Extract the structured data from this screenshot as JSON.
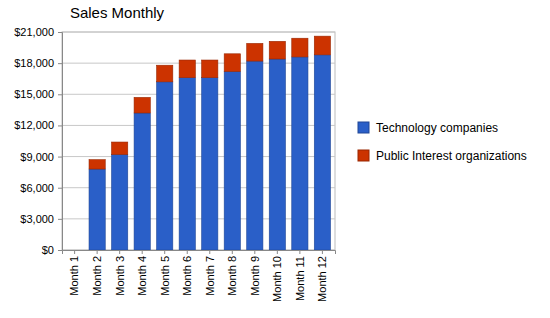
{
  "chart_data": {
    "type": "bar",
    "title": "Sales Monthly",
    "stacked": true,
    "grid": true,
    "legend": "right",
    "categories": [
      "Month 1",
      "Month 2",
      "Month 3",
      "Month 4",
      "Month 5",
      "Month 6",
      "Month 7",
      "Month 8",
      "Month 9",
      "Month 10",
      "Month 11",
      "Month 12"
    ],
    "series": [
      {
        "name": "Technology companies",
        "color": "#2a5fc8",
        "values": [
          0,
          7800,
          9200,
          13200,
          16200,
          16600,
          16600,
          17200,
          18200,
          18400,
          18600,
          18800
        ]
      },
      {
        "name": "Public Interest organizations",
        "color": "#cc3300",
        "values": [
          0,
          900,
          1200,
          1500,
          1600,
          1700,
          1700,
          1700,
          1700,
          1700,
          1800,
          1800
        ]
      }
    ],
    "ylim": [
      0,
      21000
    ],
    "yticks": [
      {
        "value": 0,
        "label": "$0"
      },
      {
        "value": 3000,
        "label": "$3,000"
      },
      {
        "value": 6000,
        "label": "$6,000"
      },
      {
        "value": 9000,
        "label": "$9,000"
      },
      {
        "value": 12000,
        "label": "$12,000"
      },
      {
        "value": 15000,
        "label": "$15,000"
      },
      {
        "value": 18000,
        "label": "$18,000"
      },
      {
        "value": 21000,
        "label": "$21,000"
      }
    ]
  }
}
